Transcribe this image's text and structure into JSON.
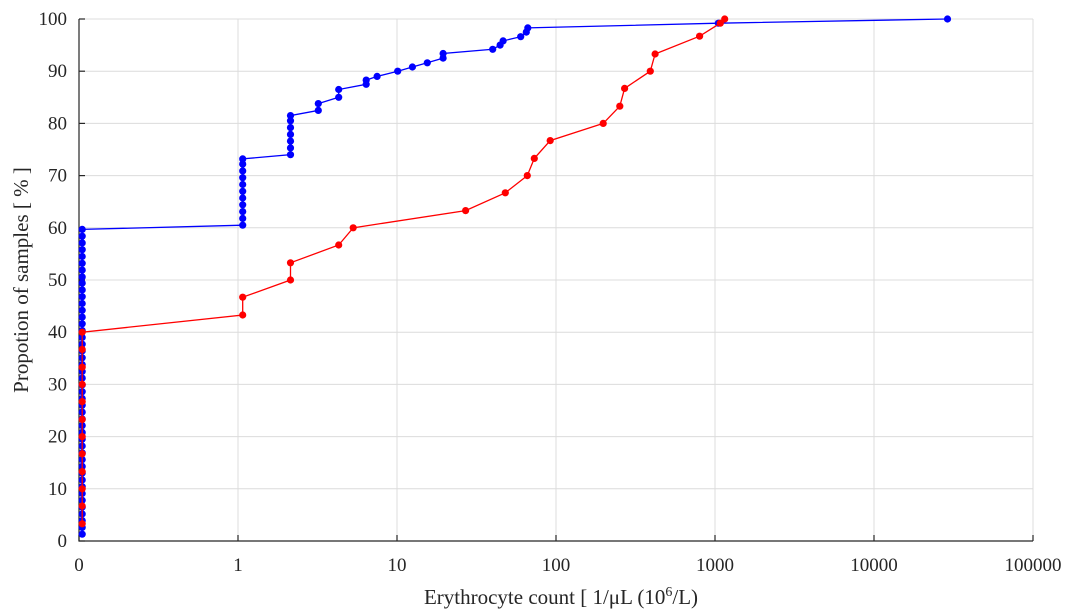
{
  "chart_data": {
    "type": "line",
    "x_scale": "log-like (first tick at 0)",
    "xlabel": "Erythrocyte count [ 1/μL (10",
    "xlabel_sup": "6",
    "xlabel_tail": "/L)",
    "ylabel": "Propotion of samples [ % ]",
    "xticks": [
      "0",
      "1",
      "10",
      "100",
      "1000",
      "10000",
      "100000"
    ],
    "yticks": [
      "0",
      "10",
      "20",
      "30",
      "40",
      "50",
      "60",
      "70",
      "80",
      "90",
      "100"
    ],
    "ylim": [
      0,
      100
    ],
    "grid": true,
    "legend": "none",
    "series": [
      {
        "color": "#0000ff",
        "points": [
          [
            0,
            1.3
          ],
          [
            0,
            2.6
          ],
          [
            0,
            3.9
          ],
          [
            0,
            5.2
          ],
          [
            0,
            6.5
          ],
          [
            0,
            7.8
          ],
          [
            0,
            9.1
          ],
          [
            0,
            10.4
          ],
          [
            0,
            11.7
          ],
          [
            0,
            13.0
          ],
          [
            0,
            14.3
          ],
          [
            0,
            15.6
          ],
          [
            0,
            16.9
          ],
          [
            0,
            18.2
          ],
          [
            0,
            19.5
          ],
          [
            0,
            20.8
          ],
          [
            0,
            22.1
          ],
          [
            0,
            23.4
          ],
          [
            0,
            24.7
          ],
          [
            0,
            26.0
          ],
          [
            0,
            27.3
          ],
          [
            0,
            28.6
          ],
          [
            0,
            29.9
          ],
          [
            0,
            31.2
          ],
          [
            0,
            32.5
          ],
          [
            0,
            33.8
          ],
          [
            0,
            35.1
          ],
          [
            0,
            36.4
          ],
          [
            0,
            37.7
          ],
          [
            0,
            39.0
          ],
          [
            0,
            40.3
          ],
          [
            0,
            41.6
          ],
          [
            0,
            42.9
          ],
          [
            0,
            44.2
          ],
          [
            0,
            45.5
          ],
          [
            0,
            46.8
          ],
          [
            0,
            48.1
          ],
          [
            0,
            49.4
          ],
          [
            0,
            50.6
          ],
          [
            0,
            51.9
          ],
          [
            0,
            53.2
          ],
          [
            0,
            54.5
          ],
          [
            0,
            55.8
          ],
          [
            0,
            57.1
          ],
          [
            0,
            58.4
          ],
          [
            0,
            59.7
          ],
          [
            1.07,
            60.5
          ],
          [
            1.07,
            61.8
          ],
          [
            1.07,
            63.1
          ],
          [
            1.07,
            64.4
          ],
          [
            1.07,
            65.7
          ],
          [
            1.07,
            67.0
          ],
          [
            1.07,
            68.3
          ],
          [
            1.07,
            69.6
          ],
          [
            1.07,
            70.9
          ],
          [
            1.07,
            72.2
          ],
          [
            1.07,
            73.2
          ],
          [
            2.14,
            74.0
          ],
          [
            2.14,
            75.3
          ],
          [
            2.14,
            76.6
          ],
          [
            2.14,
            77.9
          ],
          [
            2.14,
            79.2
          ],
          [
            2.14,
            80.5
          ],
          [
            2.14,
            81.5
          ],
          [
            3.2,
            82.5
          ],
          [
            3.2,
            83.8
          ],
          [
            4.3,
            85.0
          ],
          [
            4.3,
            86.5
          ],
          [
            6.4,
            87.5
          ],
          [
            6.4,
            88.3
          ],
          [
            7.5,
            89.0
          ],
          [
            10.1,
            90.0
          ],
          [
            12.5,
            90.8
          ],
          [
            15.5,
            91.6
          ],
          [
            19.5,
            92.5
          ],
          [
            19.5,
            93.4
          ],
          [
            40.0,
            94.2
          ],
          [
            44.5,
            95.0
          ],
          [
            46.5,
            95.8
          ],
          [
            60.0,
            96.6
          ],
          [
            65.0,
            97.5
          ],
          [
            66.5,
            98.3
          ],
          [
            1050,
            99.2
          ],
          [
            29000,
            100
          ]
        ]
      },
      {
        "color": "#ff0000",
        "points": [
          [
            0,
            3.3
          ],
          [
            0,
            6.7
          ],
          [
            0,
            10.0
          ],
          [
            0,
            13.3
          ],
          [
            0,
            16.7
          ],
          [
            0,
            20.0
          ],
          [
            0,
            23.3
          ],
          [
            0,
            26.7
          ],
          [
            0,
            30.0
          ],
          [
            0,
            33.3
          ],
          [
            0,
            36.7
          ],
          [
            0,
            40.0
          ],
          [
            1.07,
            43.3
          ],
          [
            1.07,
            46.7
          ],
          [
            2.14,
            50.0
          ],
          [
            2.14,
            53.3
          ],
          [
            4.3,
            56.7
          ],
          [
            5.3,
            60.0
          ],
          [
            27.0,
            63.3
          ],
          [
            48.0,
            66.7
          ],
          [
            66.0,
            70.0
          ],
          [
            73.0,
            73.3
          ],
          [
            92.0,
            76.7
          ],
          [
            198,
            80.0
          ],
          [
            252,
            83.3
          ],
          [
            270,
            86.7
          ],
          [
            392,
            90.0
          ],
          [
            420,
            93.3
          ],
          [
            800,
            96.7
          ],
          [
            1080,
            99.2
          ],
          [
            1150,
            100
          ]
        ]
      }
    ]
  }
}
